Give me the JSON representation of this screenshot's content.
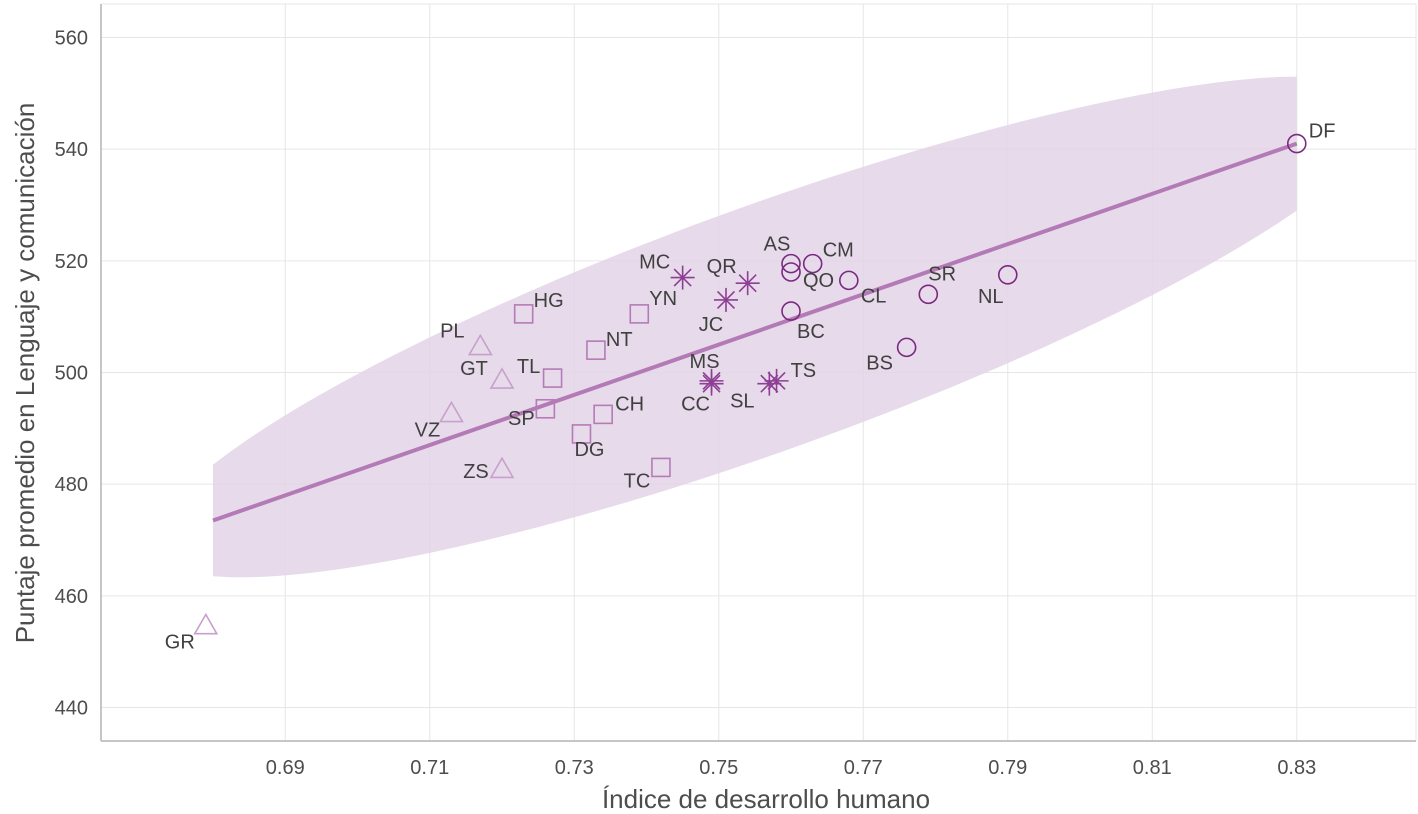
{
  "chart_data": {
    "type": "scatter",
    "xlabel": "Índice de desarrollo humano",
    "ylabel": "Puntaje promedio en Lenguaje y comunicación",
    "xlim": [
      0.6645,
      0.8465
    ],
    "ylim": [
      434,
      566
    ],
    "xticks": [
      0.69,
      0.71,
      0.73,
      0.75,
      0.77,
      0.79,
      0.81,
      0.83
    ],
    "yticks": [
      440,
      460,
      480,
      500,
      520,
      540,
      560
    ],
    "xtick_labels": [
      "0.69",
      "0.71",
      "0.73",
      "0.75",
      "0.77",
      "0.79",
      "0.81",
      "0.83"
    ],
    "ytick_labels": [
      "440",
      "460",
      "480",
      "500",
      "520",
      "540",
      "560"
    ],
    "grid": true,
    "legend": "none",
    "colors": {
      "triangle": "#c8a0cc",
      "square": "#b57bb7",
      "star": "#8e3f94",
      "circle": "#7a2a80",
      "line": "#b47ab5",
      "band": "#e3d3e6",
      "grid": "#e6e6e6",
      "axis": "#b3b3b3"
    },
    "trend": {
      "type": "linear",
      "x": [
        0.68,
        0.83
      ],
      "y": [
        473.5,
        541
      ],
      "ci_lower": [
        463.5,
        529
      ],
      "ci_upper": [
        483.5,
        553
      ]
    },
    "points": [
      {
        "label": "GR",
        "x": 0.679,
        "y": 454.5,
        "shape": "triangle"
      },
      {
        "label": "VZ",
        "x": 0.713,
        "y": 492.5,
        "shape": "triangle"
      },
      {
        "label": "PL",
        "x": 0.717,
        "y": 504.5,
        "shape": "triangle"
      },
      {
        "label": "GT",
        "x": 0.72,
        "y": 498.5,
        "shape": "triangle"
      },
      {
        "label": "ZS",
        "x": 0.72,
        "y": 482.5,
        "shape": "triangle"
      },
      {
        "label": "HG",
        "x": 0.723,
        "y": 510.5,
        "shape": "square"
      },
      {
        "label": "SP",
        "x": 0.726,
        "y": 493.5,
        "shape": "square"
      },
      {
        "label": "TL",
        "x": 0.727,
        "y": 499,
        "shape": "square"
      },
      {
        "label": "DG",
        "x": 0.731,
        "y": 489,
        "shape": "square"
      },
      {
        "label": "NT",
        "x": 0.733,
        "y": 504,
        "shape": "square"
      },
      {
        "label": "CH",
        "x": 0.734,
        "y": 492.5,
        "shape": "square"
      },
      {
        "label": "YN",
        "x": 0.739,
        "y": 510.5,
        "shape": "square"
      },
      {
        "label": "TC",
        "x": 0.742,
        "y": 483,
        "shape": "square"
      },
      {
        "label": "MC",
        "x": 0.745,
        "y": 517,
        "shape": "star"
      },
      {
        "label": "MS",
        "x": 0.749,
        "y": 498.5,
        "shape": "star"
      },
      {
        "label": "CC",
        "x": 0.749,
        "y": 498,
        "shape": "star"
      },
      {
        "label": "JC",
        "x": 0.751,
        "y": 513,
        "shape": "star"
      },
      {
        "label": "QR",
        "x": 0.754,
        "y": 516,
        "shape": "star"
      },
      {
        "label": "SL",
        "x": 0.757,
        "y": 498,
        "shape": "star"
      },
      {
        "label": "TS",
        "x": 0.758,
        "y": 498.5,
        "shape": "star"
      },
      {
        "label": "AS",
        "x": 0.76,
        "y": 519.5,
        "shape": "circle"
      },
      {
        "label": "QO",
        "x": 0.76,
        "y": 518,
        "shape": "circle"
      },
      {
        "label": "BC",
        "x": 0.76,
        "y": 511,
        "shape": "circle"
      },
      {
        "label": "CM",
        "x": 0.763,
        "y": 519.5,
        "shape": "circle"
      },
      {
        "label": "CL",
        "x": 0.768,
        "y": 516.5,
        "shape": "circle"
      },
      {
        "label": "BS",
        "x": 0.776,
        "y": 504.5,
        "shape": "circle"
      },
      {
        "label": "SR",
        "x": 0.779,
        "y": 514,
        "shape": "circle"
      },
      {
        "label": "NL",
        "x": 0.79,
        "y": 517.5,
        "shape": "circle"
      },
      {
        "label": "DF",
        "x": 0.83,
        "y": 541,
        "shape": "circle"
      }
    ]
  }
}
